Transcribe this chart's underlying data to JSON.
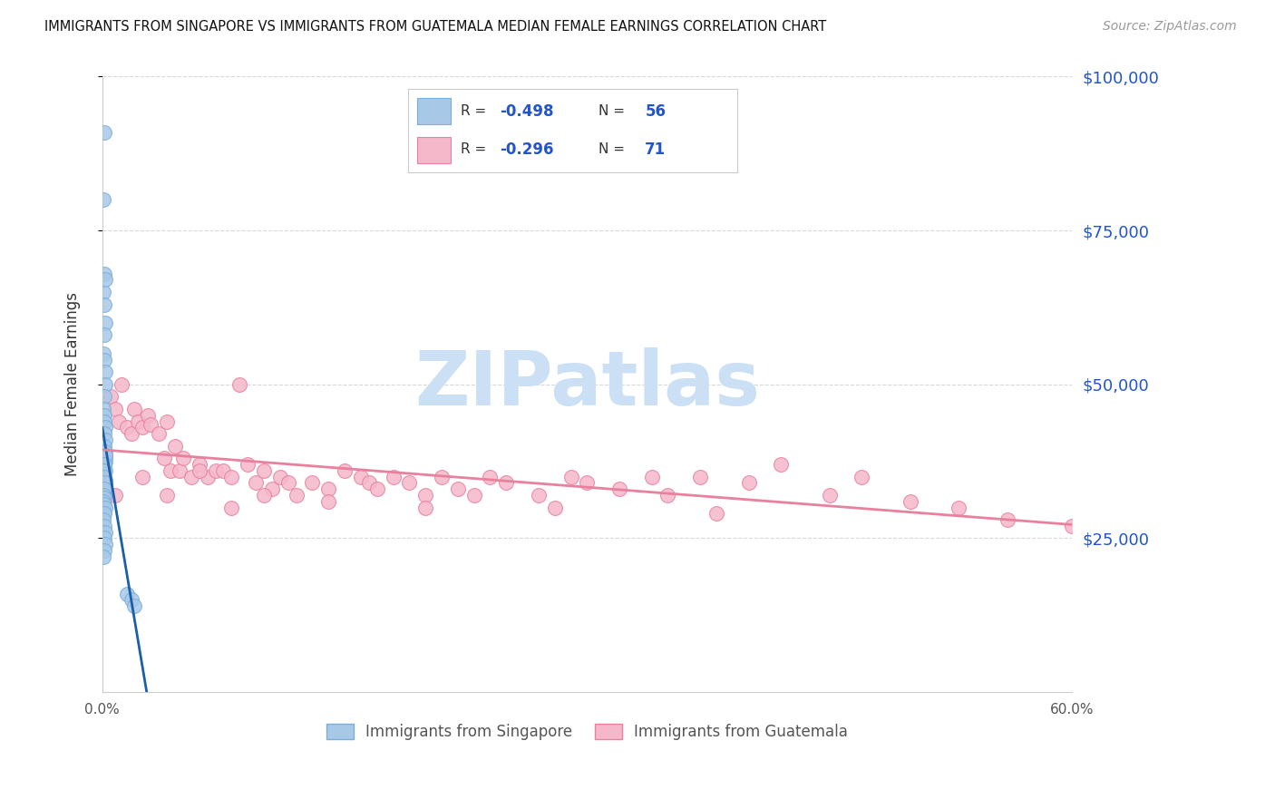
{
  "title": "IMMIGRANTS FROM SINGAPORE VS IMMIGRANTS FROM GUATEMALA MEDIAN FEMALE EARNINGS CORRELATION CHART",
  "source": "Source: ZipAtlas.com",
  "ylabel": "Median Female Earnings",
  "x_min": 0.0,
  "x_max": 0.6,
  "y_min": 0,
  "y_max": 100000,
  "x_ticks": [
    0.0,
    0.1,
    0.2,
    0.3,
    0.4,
    0.5,
    0.6
  ],
  "x_tick_labels": [
    "0.0%",
    "",
    "",
    "",
    "",
    "",
    "60.0%"
  ],
  "y_ticks_right": [
    25000,
    50000,
    75000,
    100000
  ],
  "y_tick_labels_right": [
    "$25,000",
    "$50,000",
    "$75,000",
    "$100,000"
  ],
  "singapore_color": "#a8c8e8",
  "singapore_edge_color": "#7aaedb",
  "singapore_line_color": "#1a5fa8",
  "singapore_R": -0.498,
  "singapore_N": 56,
  "guatemala_color": "#f5b8cb",
  "guatemala_edge_color": "#e8809e",
  "guatemala_line_color": "#e8809e",
  "guatemala_R": -0.296,
  "guatemala_N": 71,
  "watermark": "ZIPatlas",
  "watermark_color": "#cce0f5",
  "background_color": "#ffffff",
  "grid_color": "#d8d8d8",
  "legend_label_singapore": "Immigrants from Singapore",
  "legend_label_guatemala": "Immigrants from Guatemala",
  "singapore_x": [
    0.001,
    0.0005,
    0.001,
    0.0008,
    0.002,
    0.001,
    0.0015,
    0.001,
    0.0005,
    0.001,
    0.0015,
    0.002,
    0.001,
    0.0008,
    0.001,
    0.0012,
    0.0018,
    0.001,
    0.0015,
    0.001,
    0.0005,
    0.002,
    0.0015,
    0.001,
    0.002,
    0.0008,
    0.001,
    0.0015,
    0.001,
    0.002,
    0.001,
    0.0008,
    0.001,
    0.0015,
    0.002,
    0.001,
    0.0005,
    0.001,
    0.0015,
    0.001,
    0.0005,
    0.001,
    0.0008,
    0.001,
    0.0015,
    0.001,
    0.0005,
    0.001,
    0.0015,
    0.001,
    0.002,
    0.001,
    0.0008,
    0.015,
    0.018,
    0.02
  ],
  "singapore_y": [
    91000,
    80000,
    68000,
    65000,
    67000,
    63000,
    60000,
    58000,
    55000,
    54000,
    52000,
    50000,
    48000,
    46000,
    45000,
    44000,
    43000,
    42000,
    41000,
    40000,
    39000,
    38000,
    37500,
    36500,
    36000,
    35500,
    35000,
    34500,
    34000,
    33500,
    33000,
    32500,
    32000,
    39000,
    38500,
    37000,
    36000,
    35000,
    34000,
    33000,
    32000,
    31500,
    31000,
    30500,
    30000,
    29000,
    28000,
    27000,
    26000,
    25000,
    24000,
    23000,
    22000,
    16000,
    15000,
    14000
  ],
  "guatemala_x": [
    0.005,
    0.008,
    0.01,
    0.012,
    0.015,
    0.018,
    0.02,
    0.022,
    0.025,
    0.028,
    0.03,
    0.035,
    0.038,
    0.04,
    0.042,
    0.045,
    0.048,
    0.05,
    0.055,
    0.06,
    0.065,
    0.07,
    0.075,
    0.08,
    0.085,
    0.09,
    0.095,
    0.1,
    0.105,
    0.11,
    0.115,
    0.12,
    0.13,
    0.14,
    0.15,
    0.16,
    0.165,
    0.17,
    0.18,
    0.19,
    0.2,
    0.21,
    0.22,
    0.23,
    0.24,
    0.25,
    0.27,
    0.29,
    0.3,
    0.32,
    0.34,
    0.35,
    0.37,
    0.4,
    0.42,
    0.45,
    0.47,
    0.5,
    0.53,
    0.56,
    0.008,
    0.025,
    0.04,
    0.06,
    0.08,
    0.1,
    0.14,
    0.2,
    0.28,
    0.38,
    0.6
  ],
  "guatemala_y": [
    48000,
    46000,
    44000,
    50000,
    43000,
    42000,
    46000,
    44000,
    43000,
    45000,
    43500,
    42000,
    38000,
    44000,
    36000,
    40000,
    36000,
    38000,
    35000,
    37000,
    35000,
    36000,
    36000,
    35000,
    50000,
    37000,
    34000,
    36000,
    33000,
    35000,
    34000,
    32000,
    34000,
    33000,
    36000,
    35000,
    34000,
    33000,
    35000,
    34000,
    32000,
    35000,
    33000,
    32000,
    35000,
    34000,
    32000,
    35000,
    34000,
    33000,
    35000,
    32000,
    35000,
    34000,
    37000,
    32000,
    35000,
    31000,
    30000,
    28000,
    32000,
    35000,
    32000,
    36000,
    30000,
    32000,
    31000,
    30000,
    30000,
    29000,
    27000
  ]
}
